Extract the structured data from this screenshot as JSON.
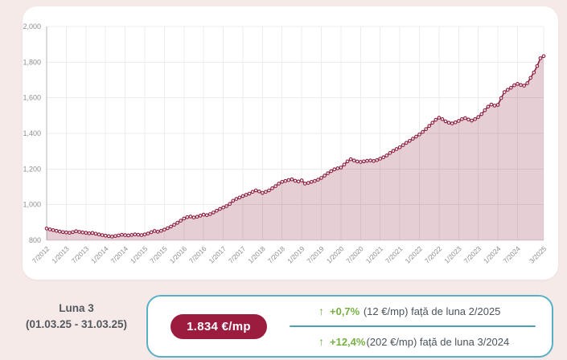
{
  "chart_data": {
    "type": "area",
    "title": "",
    "xlabel": "",
    "ylabel": "",
    "unit": "€/mp",
    "grid": true,
    "legend": "none",
    "ylim": [
      800,
      2000
    ],
    "y_ticks": [
      800,
      1000,
      1200,
      1400,
      1600,
      1800,
      2000
    ],
    "y_tick_labels": [
      "800",
      "1,000",
      "1,200",
      "1,400",
      "1,600",
      "1,800",
      "2,000"
    ],
    "x_tick_indices": [
      0,
      6,
      12,
      18,
      24,
      30,
      36,
      42,
      48,
      54,
      60,
      66,
      72,
      78,
      84,
      90,
      96,
      102,
      108,
      114,
      120,
      126,
      132,
      138,
      144,
      152
    ],
    "x_tick_labels": [
      "7/2012",
      "1/2013",
      "7/2013",
      "1/2014",
      "7/2014",
      "1/2015",
      "7/2015",
      "1/2016",
      "7/2016",
      "1/2017",
      "7/2017",
      "1/2018",
      "7/2018",
      "1/2019",
      "7/2019",
      "1/2020",
      "7/2020",
      "1/2021",
      "7/2021",
      "1/2022",
      "7/2022",
      "1/2023",
      "7/2023",
      "1/2024",
      "7/2024",
      "3/2025"
    ],
    "x": [
      "7/2012",
      "8/2012",
      "9/2012",
      "10/2012",
      "11/2012",
      "12/2012",
      "1/2013",
      "2/2013",
      "3/2013",
      "4/2013",
      "5/2013",
      "6/2013",
      "7/2013",
      "8/2013",
      "9/2013",
      "10/2013",
      "11/2013",
      "12/2013",
      "1/2014",
      "2/2014",
      "3/2014",
      "4/2014",
      "5/2014",
      "6/2014",
      "7/2014",
      "8/2014",
      "9/2014",
      "10/2014",
      "11/2014",
      "12/2014",
      "1/2015",
      "2/2015",
      "3/2015",
      "4/2015",
      "5/2015",
      "6/2015",
      "7/2015",
      "8/2015",
      "9/2015",
      "10/2015",
      "11/2015",
      "12/2015",
      "1/2016",
      "2/2016",
      "3/2016",
      "4/2016",
      "5/2016",
      "6/2016",
      "7/2016",
      "8/2016",
      "9/2016",
      "10/2016",
      "11/2016",
      "12/2016",
      "1/2017",
      "2/2017",
      "3/2017",
      "4/2017",
      "5/2017",
      "6/2017",
      "7/2017",
      "8/2017",
      "9/2017",
      "10/2017",
      "11/2017",
      "12/2017",
      "1/2018",
      "2/2018",
      "3/2018",
      "4/2018",
      "5/2018",
      "6/2018",
      "7/2018",
      "8/2018",
      "9/2018",
      "10/2018",
      "11/2018",
      "12/2018",
      "1/2019",
      "2/2019",
      "3/2019",
      "4/2019",
      "5/2019",
      "6/2019",
      "7/2019",
      "8/2019",
      "9/2019",
      "10/2019",
      "11/2019",
      "12/2019",
      "1/2020",
      "2/2020",
      "3/2020",
      "4/2020",
      "5/2020",
      "6/2020",
      "7/2020",
      "8/2020",
      "9/2020",
      "10/2020",
      "11/2020",
      "12/2020",
      "1/2021",
      "2/2021",
      "3/2021",
      "4/2021",
      "5/2021",
      "6/2021",
      "7/2021",
      "8/2021",
      "9/2021",
      "10/2021",
      "11/2021",
      "12/2021",
      "1/2022",
      "2/2022",
      "3/2022",
      "4/2022",
      "5/2022",
      "6/2022",
      "7/2022",
      "8/2022",
      "9/2022",
      "10/2022",
      "11/2022",
      "12/2022",
      "1/2023",
      "2/2023",
      "3/2023",
      "4/2023",
      "5/2023",
      "6/2023",
      "7/2023",
      "8/2023",
      "9/2023",
      "10/2023",
      "11/2023",
      "12/2023",
      "1/2024",
      "2/2024",
      "3/2024",
      "4/2024",
      "5/2024",
      "6/2024",
      "7/2024",
      "8/2024",
      "9/2024",
      "10/2024",
      "11/2024",
      "12/2024",
      "1/2025",
      "2/2025",
      "3/2025"
    ],
    "values": [
      866,
      861,
      857,
      853,
      849,
      846,
      844,
      842,
      846,
      851,
      847,
      844,
      842,
      839,
      841,
      837,
      833,
      829,
      826,
      823,
      821,
      824,
      827,
      831,
      829,
      827,
      830,
      833,
      831,
      829,
      833,
      838,
      845,
      852,
      848,
      853,
      860,
      868,
      877,
      887,
      898,
      910,
      922,
      930,
      933,
      928,
      932,
      938,
      944,
      941,
      947,
      956,
      966,
      976,
      984,
      992,
      1004,
      1022,
      1032,
      1040,
      1048,
      1055,
      1062,
      1072,
      1080,
      1074,
      1066,
      1072,
      1080,
      1092,
      1104,
      1118,
      1128,
      1133,
      1138,
      1142,
      1134,
      1130,
      1136,
      1118,
      1122,
      1128,
      1133,
      1140,
      1150,
      1163,
      1176,
      1188,
      1198,
      1204,
      1208,
      1225,
      1243,
      1255,
      1248,
      1242,
      1240,
      1243,
      1246,
      1248,
      1245,
      1250,
      1258,
      1266,
      1276,
      1290,
      1302,
      1312,
      1322,
      1334,
      1347,
      1358,
      1370,
      1382,
      1394,
      1408,
      1424,
      1442,
      1460,
      1476,
      1488,
      1480,
      1468,
      1460,
      1456,
      1462,
      1470,
      1480,
      1486,
      1478,
      1472,
      1480,
      1492,
      1508,
      1530,
      1550,
      1562,
      1556,
      1560,
      1598,
      1632,
      1645,
      1656,
      1670,
      1678,
      1672,
      1668,
      1682,
      1712,
      1742,
      1778,
      1822,
      1834
    ],
    "line_color": "#8c1f3f",
    "fill_color": "#8c1f3f",
    "fill_opacity": 0.22,
    "marker_fill": "#f9f0f2",
    "axis_text_color": "#8e8e8e",
    "grid_color": "#ececec"
  },
  "footer": {
    "period_title": "Luna 3",
    "period_range": "(01.03.25 - 31.03.25)",
    "current_price": "1.834 €/mp",
    "stats": [
      {
        "arrow": "↑",
        "percent": "+0,7%",
        "text": " (12 €/mp) față de luna 2/2025"
      },
      {
        "arrow": "↑",
        "percent": "+12,4%",
        "text": "(202 €/mp) față de luna 3/2024"
      }
    ]
  },
  "colors": {
    "page_background": "#f5eae8",
    "card_background": "#ffffff",
    "accent_teal": "#58b0c6",
    "divider_teal": "#4d9fb3",
    "green": "#76b043",
    "badge_red": "#9c1c40",
    "text_dark": "#4a545c"
  }
}
